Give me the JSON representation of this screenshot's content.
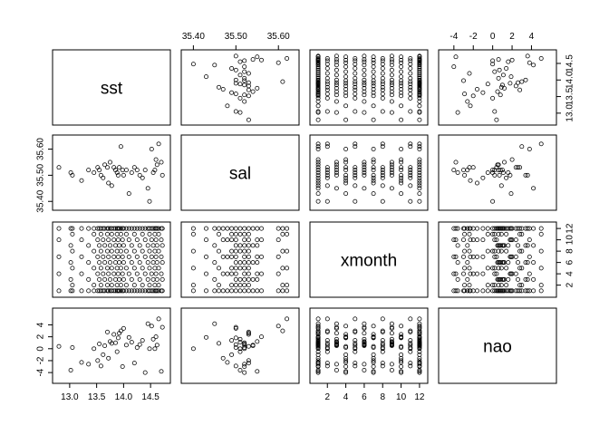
{
  "chart_data": {
    "type": "scatter",
    "layout": "pairs-matrix",
    "variables": [
      {
        "name": "sst",
        "range": [
          12.75,
          14.8
        ],
        "ticks": [
          "13.0",
          "13.5",
          "14.0",
          "14.5"
        ],
        "tick_values": [
          13.0,
          13.5,
          14.0,
          14.5
        ]
      },
      {
        "name": "sal",
        "range": [
          35.38,
          35.64
        ],
        "ticks": [
          "35.40",
          "35.50",
          "35.60"
        ],
        "tick_values": [
          35.4,
          35.5,
          35.6
        ]
      },
      {
        "name": "xmonth",
        "range": [
          0.5,
          12.5
        ],
        "ticks": [
          "2",
          "4",
          "6",
          "8",
          "10",
          "12"
        ],
        "tick_values": [
          2,
          4,
          6,
          8,
          10,
          12
        ]
      },
      {
        "name": "nao",
        "range": [
          -5.2,
          6.2
        ],
        "ticks": [
          "-4",
          "-2",
          "0",
          "2",
          "4"
        ],
        "tick_values": [
          -4,
          -2,
          0,
          2,
          4
        ]
      }
    ],
    "top_axes": [
      {
        "panel_col": 1,
        "ticks": [
          "35.40",
          "35.50",
          "35.60"
        ],
        "tick_values": [
          35.4,
          35.5,
          35.6
        ]
      },
      {
        "panel_col": 3,
        "ticks": [
          "-4",
          "-2",
          "0",
          "2",
          "4"
        ],
        "tick_values": [
          -4,
          -2,
          0,
          2,
          4
        ]
      }
    ],
    "right_axes": [
      {
        "panel_row": 0,
        "ticks": [
          "13.0",
          "13.5",
          "14.0",
          "14.5"
        ],
        "tick_values": [
          13.0,
          13.5,
          14.0,
          14.5
        ]
      },
      {
        "panel_row": 2,
        "ticks": [
          "2",
          "4",
          "6",
          "8",
          "10",
          "12"
        ],
        "tick_values": [
          2,
          4,
          6,
          8,
          10,
          12
        ]
      }
    ],
    "left_axes": [
      {
        "panel_row": 1,
        "ticks": [
          "35.40",
          "35.50",
          "35.60"
        ],
        "tick_values": [
          35.4,
          35.5,
          35.6
        ]
      },
      {
        "panel_row": 3,
        "ticks": [
          "-4",
          "-2",
          "0",
          "2",
          "4"
        ],
        "tick_values": [
          -4,
          -2,
          0,
          2,
          4
        ]
      }
    ],
    "bottom_axes": [
      {
        "panel_col": 0,
        "ticks": [
          "13.0",
          "13.5",
          "14.0",
          "14.5"
        ],
        "tick_values": [
          13.0,
          13.5,
          14.0,
          14.5
        ]
      },
      {
        "panel_col": 2,
        "ticks": [
          "2",
          "4",
          "6",
          "8",
          "10",
          "12"
        ],
        "tick_values": [
          2,
          4,
          6,
          8,
          10,
          12
        ]
      }
    ],
    "observations": {
      "sst_sal_nao": [
        [
          12.8,
          35.53,
          0.4
        ],
        [
          13.02,
          35.51,
          -3.6
        ],
        [
          13.05,
          35.5,
          0.2
        ],
        [
          13.22,
          35.48,
          -2.3
        ],
        [
          13.35,
          35.52,
          -2.6
        ],
        [
          13.45,
          35.51,
          0.0
        ],
        [
          13.52,
          35.53,
          -2.0
        ],
        [
          13.55,
          35.52,
          0.8
        ],
        [
          13.58,
          35.5,
          -2.9
        ],
        [
          13.62,
          35.49,
          -1.0
        ],
        [
          13.65,
          35.54,
          0.5
        ],
        [
          13.7,
          35.53,
          2.8
        ],
        [
          13.72,
          35.47,
          -1.6
        ],
        [
          13.75,
          35.55,
          1.2
        ],
        [
          13.78,
          35.46,
          0.9
        ],
        [
          13.82,
          35.53,
          2.4
        ],
        [
          13.85,
          35.52,
          1.0
        ],
        [
          13.88,
          35.51,
          -0.5
        ],
        [
          13.9,
          35.5,
          1.8
        ],
        [
          13.92,
          35.53,
          2.6
        ],
        [
          13.95,
          35.61,
          3.0
        ],
        [
          13.98,
          35.52,
          -3.0
        ],
        [
          14.0,
          35.5,
          3.4
        ],
        [
          14.05,
          35.52,
          0.6
        ],
        [
          14.1,
          35.43,
          1.9
        ],
        [
          14.15,
          35.51,
          1.1
        ],
        [
          14.2,
          35.53,
          -2.4
        ],
        [
          14.25,
          35.52,
          0.2
        ],
        [
          14.3,
          35.5,
          0.7
        ],
        [
          14.35,
          35.49,
          1.4
        ],
        [
          14.4,
          35.52,
          -4.0
        ],
        [
          14.45,
          35.45,
          4.2
        ],
        [
          14.48,
          35.4,
          0.0
        ],
        [
          14.52,
          35.6,
          3.8
        ],
        [
          14.55,
          35.51,
          1.6
        ],
        [
          14.58,
          35.52,
          0.0
        ],
        [
          14.6,
          35.56,
          2.0
        ],
        [
          14.62,
          35.54,
          0.6
        ],
        [
          14.65,
          35.62,
          5.0
        ],
        [
          14.7,
          35.55,
          -3.8
        ],
        [
          14.72,
          35.5,
          3.6
        ]
      ],
      "xmonth_values": [
        1,
        2,
        3,
        4,
        5,
        6,
        7,
        8,
        9,
        10,
        11,
        12
      ]
    }
  }
}
